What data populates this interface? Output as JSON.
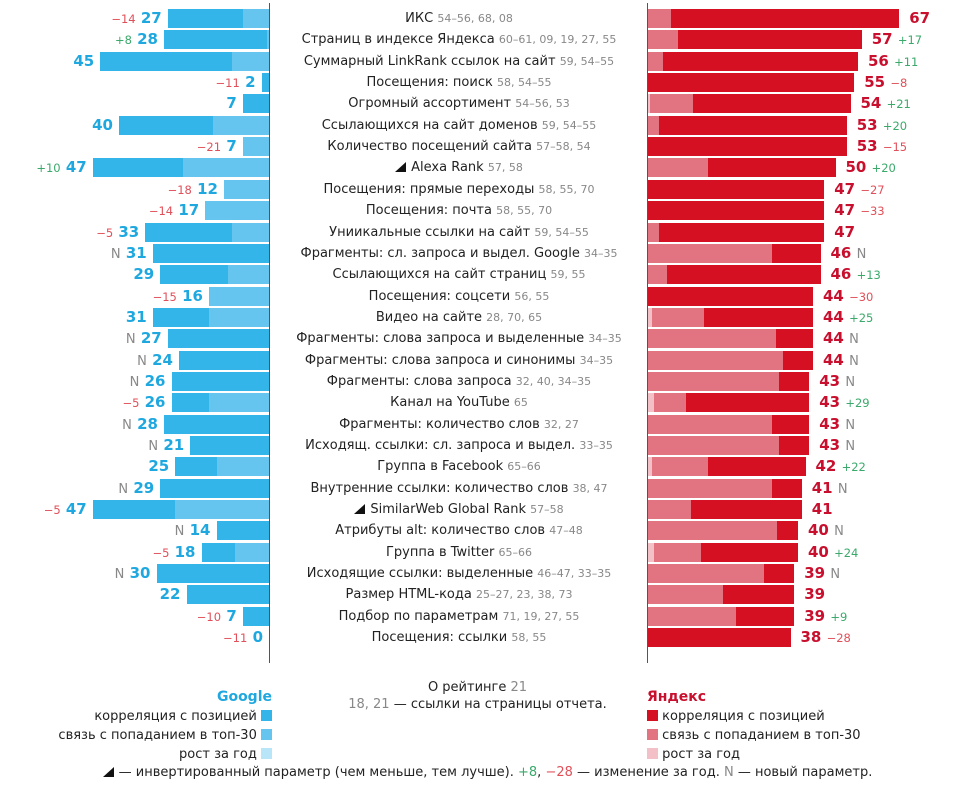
{
  "chart_data": {
    "type": "bar",
    "orientation": "horizontal-diverging",
    "title": "",
    "series": [
      {
        "name": "Google",
        "color_position": "#33b5ea",
        "color_top30": "#66c5ef",
        "color_growth": "#b9e5f8"
      },
      {
        "name": "Яндекс",
        "color_position": "#d41022",
        "color_top30": "#e27482",
        "color_growth": "#f2c0c6"
      }
    ],
    "rows": [
      {
        "label": "ИКС",
        "refs": "54–56, 68, 08",
        "inverted": false,
        "google": {
          "value": 27,
          "position": 20,
          "top30": 7,
          "growth": 0,
          "change": "−14",
          "change_type": "neg"
        },
        "yandex": {
          "value": 67,
          "position": 61,
          "top30": 6,
          "growth": 0,
          "change": "",
          "change_type": ""
        }
      },
      {
        "label": "Страниц в индексе Яндекса",
        "refs": "60–61, 09, 19, 27, 55",
        "inverted": false,
        "google": {
          "value": 28,
          "position": 27.5,
          "top30": 0.5,
          "growth": 0,
          "change": "+8",
          "change_type": "pos"
        },
        "yandex": {
          "value": 57,
          "position": 49,
          "top30": 8,
          "growth": 0,
          "change": "+17",
          "change_type": "pos"
        }
      },
      {
        "label": "Суммарный LinkRank ссылок на сайт",
        "refs": "59, 54–55",
        "inverted": false,
        "google": {
          "value": 45,
          "position": 35,
          "top30": 10,
          "growth": 0,
          "change": "",
          "change_type": ""
        },
        "yandex": {
          "value": 56,
          "position": 52,
          "top30": 4,
          "growth": 0,
          "change": "+11",
          "change_type": "pos"
        }
      },
      {
        "label": "Посещения: поиск",
        "refs": "58, 54–55",
        "inverted": false,
        "google": {
          "value": 2,
          "position": 2,
          "top30": 0,
          "growth": 0,
          "change": "−11",
          "change_type": "neg"
        },
        "yandex": {
          "value": 55,
          "position": 55,
          "top30": 0,
          "growth": 0,
          "change": "−8",
          "change_type": "neg"
        }
      },
      {
        "label": "Огромный ассортимент",
        "refs": "54–56, 53",
        "inverted": false,
        "google": {
          "value": 7,
          "position": 7,
          "top30": 0,
          "growth": 0,
          "change": "",
          "change_type": ""
        },
        "yandex": {
          "value": 54,
          "position": 42,
          "top30": 11.5,
          "growth": 0.5,
          "change": "+21",
          "change_type": "pos"
        }
      },
      {
        "label": "Ссылающихся на сайт доменов",
        "refs": "59, 54–55",
        "inverted": false,
        "google": {
          "value": 40,
          "position": 25,
          "top30": 15,
          "growth": 0,
          "change": "",
          "change_type": ""
        },
        "yandex": {
          "value": 53,
          "position": 50,
          "top30": 3,
          "growth": 0,
          "change": "+20",
          "change_type": "pos"
        }
      },
      {
        "label": "Количество посещений сайта",
        "refs": "57–58, 54",
        "inverted": false,
        "google": {
          "value": 7,
          "position": 0,
          "top30": 7,
          "growth": 0,
          "change": "−21",
          "change_type": "neg"
        },
        "yandex": {
          "value": 53,
          "position": 53,
          "top30": 0,
          "growth": 0,
          "change": "−15",
          "change_type": "neg"
        }
      },
      {
        "label": "Alexa Rank",
        "refs": "57, 58",
        "inverted": true,
        "google": {
          "value": 47,
          "position": 24,
          "top30": 23,
          "growth": 0,
          "change": "+10",
          "change_type": "pos"
        },
        "yandex": {
          "value": 50,
          "position": 34,
          "top30": 16,
          "growth": 0,
          "change": "+20",
          "change_type": "pos"
        }
      },
      {
        "label": "Посещения: прямые переходы",
        "refs": "58, 55, 70",
        "inverted": false,
        "google": {
          "value": 12,
          "position": 0,
          "top30": 12,
          "growth": 0,
          "change": "−18",
          "change_type": "neg"
        },
        "yandex": {
          "value": 47,
          "position": 47,
          "top30": 0,
          "growth": 0,
          "change": "−27",
          "change_type": "neg"
        }
      },
      {
        "label": "Посещения: почта",
        "refs": "58, 55, 70",
        "inverted": false,
        "google": {
          "value": 17,
          "position": 0,
          "top30": 17,
          "growth": 0,
          "change": "−14",
          "change_type": "neg"
        },
        "yandex": {
          "value": 47,
          "position": 47,
          "top30": 0,
          "growth": 0,
          "change": "−33",
          "change_type": "neg"
        }
      },
      {
        "label": "Униикальные ссылки на сайт",
        "refs": "59, 54–55",
        "inverted": false,
        "google": {
          "value": 33,
          "position": 23,
          "top30": 10,
          "growth": 0,
          "change": "−5",
          "change_type": "neg"
        },
        "yandex": {
          "value": 47,
          "position": 44,
          "top30": 3,
          "growth": 0,
          "change": "",
          "change_type": ""
        }
      },
      {
        "label": "Фрагменты: сл. запроса и выдел. Google",
        "refs": "34–35",
        "inverted": false,
        "google": {
          "value": 31,
          "position": 31,
          "top30": 0,
          "growth": 0,
          "change": "N",
          "change_type": "new"
        },
        "yandex": {
          "value": 46,
          "position": 13,
          "top30": 33,
          "growth": 0,
          "change": "N",
          "change_type": "new"
        }
      },
      {
        "label": "Ссылающихся на сайт страниц",
        "refs": "59, 55",
        "inverted": false,
        "google": {
          "value": 29,
          "position": 18,
          "top30": 11,
          "growth": 0,
          "change": "",
          "change_type": ""
        },
        "yandex": {
          "value": 46,
          "position": 41,
          "top30": 5,
          "growth": 0,
          "change": "+13",
          "change_type": "pos"
        }
      },
      {
        "label": "Посещения: соцсети",
        "refs": "56, 55",
        "inverted": false,
        "google": {
          "value": 16,
          "position": 0,
          "top30": 16,
          "growth": 0,
          "change": "−15",
          "change_type": "neg"
        },
        "yandex": {
          "value": 44,
          "position": 44,
          "top30": 0,
          "growth": 0,
          "change": "−30",
          "change_type": "neg"
        }
      },
      {
        "label": "Видео на сайте",
        "refs": "28, 70, 65",
        "inverted": false,
        "google": {
          "value": 31,
          "position": 15,
          "top30": 16,
          "growth": 0,
          "change": "",
          "change_type": ""
        },
        "yandex": {
          "value": 44,
          "position": 29,
          "top30": 14,
          "growth": 1,
          "change": "+25",
          "change_type": "pos"
        }
      },
      {
        "label": "Фрагменты: слова запроса и выделенные",
        "refs": "34–35",
        "inverted": false,
        "google": {
          "value": 27,
          "position": 27,
          "top30": 0,
          "growth": 0,
          "change": "N",
          "change_type": "new"
        },
        "yandex": {
          "value": 44,
          "position": 10,
          "top30": 34,
          "growth": 0,
          "change": "N",
          "change_type": "new"
        }
      },
      {
        "label": "Фрагменты: слова запроса и синонимы",
        "refs": "34–35",
        "inverted": false,
        "google": {
          "value": 24,
          "position": 24,
          "top30": 0,
          "growth": 0,
          "change": "N",
          "change_type": "new"
        },
        "yandex": {
          "value": 44,
          "position": 8,
          "top30": 36,
          "growth": 0,
          "change": "N",
          "change_type": "new"
        }
      },
      {
        "label": "Фрагменты: слова запроса",
        "refs": "32, 40, 34–35",
        "inverted": false,
        "google": {
          "value": 26,
          "position": 26,
          "top30": 0,
          "growth": 0,
          "change": "N",
          "change_type": "new"
        },
        "yandex": {
          "value": 43,
          "position": 8,
          "top30": 35,
          "growth": 0,
          "change": "N",
          "change_type": "new"
        }
      },
      {
        "label": "Канал на YouTube",
        "refs": "65",
        "inverted": false,
        "google": {
          "value": 26,
          "position": 10,
          "top30": 16,
          "growth": 0,
          "change": "−5",
          "change_type": "neg"
        },
        "yandex": {
          "value": 43,
          "position": 33,
          "top30": 8.5,
          "growth": 1.5,
          "change": "+29",
          "change_type": "pos"
        }
      },
      {
        "label": "Фрагменты: количество слов",
        "refs": "32, 27",
        "inverted": false,
        "google": {
          "value": 28,
          "position": 28,
          "top30": 0,
          "growth": 0,
          "change": "N",
          "change_type": "new"
        },
        "yandex": {
          "value": 43,
          "position": 10,
          "top30": 33,
          "growth": 0,
          "change": "N",
          "change_type": "new"
        }
      },
      {
        "label": "Исходящ. ссылки: сл. запроса и выдел.",
        "refs": "33–35",
        "inverted": false,
        "google": {
          "value": 21,
          "position": 21,
          "top30": 0,
          "growth": 0,
          "change": "N",
          "change_type": "new"
        },
        "yandex": {
          "value": 43,
          "position": 8,
          "top30": 35,
          "growth": 0,
          "change": "N",
          "change_type": "new"
        }
      },
      {
        "label": "Группа в Facebook",
        "refs": "65–66",
        "inverted": false,
        "google": {
          "value": 25,
          "position": 11,
          "top30": 14,
          "growth": 0,
          "change": "",
          "change_type": ""
        },
        "yandex": {
          "value": 42,
          "position": 26,
          "top30": 15,
          "growth": 1,
          "change": "+22",
          "change_type": "pos"
        }
      },
      {
        "label": "Внутренние ссылки: количество слов",
        "refs": "38, 47",
        "inverted": false,
        "google": {
          "value": 29,
          "position": 29,
          "top30": 0,
          "growth": 0,
          "change": "N",
          "change_type": "new"
        },
        "yandex": {
          "value": 41,
          "position": 8,
          "top30": 33,
          "growth": 0,
          "change": "N",
          "change_type": "new"
        }
      },
      {
        "label": "SimilarWeb Global Rank",
        "refs": "57–58",
        "inverted": true,
        "google": {
          "value": 47,
          "position": 22,
          "top30": 25,
          "growth": 0,
          "change": "−5",
          "change_type": "neg"
        },
        "yandex": {
          "value": 41,
          "position": 29.5,
          "top30": 11.5,
          "growth": 0,
          "change": "",
          "change_type": ""
        }
      },
      {
        "label": "Атрибуты alt: количество слов",
        "refs": "47–48",
        "inverted": false,
        "google": {
          "value": 14,
          "position": 14,
          "top30": 0,
          "growth": 0,
          "change": "N",
          "change_type": "new"
        },
        "yandex": {
          "value": 40,
          "position": 5.5,
          "top30": 34.5,
          "growth": 0,
          "change": "N",
          "change_type": "new"
        }
      },
      {
        "label": "Группа в Twitter",
        "refs": "65–66",
        "inverted": false,
        "google": {
          "value": 18,
          "position": 9,
          "top30": 9,
          "growth": 0,
          "change": "−5",
          "change_type": "neg"
        },
        "yandex": {
          "value": 40,
          "position": 26,
          "top30": 12.5,
          "growth": 1.5,
          "change": "+24",
          "change_type": "pos"
        }
      },
      {
        "label": "Исходящие ссылки: выделенные",
        "refs": "46–47, 33–35",
        "inverted": false,
        "google": {
          "value": 30,
          "position": 30,
          "top30": 0,
          "growth": 0,
          "change": "N",
          "change_type": "new"
        },
        "yandex": {
          "value": 39,
          "position": 8,
          "top30": 31,
          "growth": 0,
          "change": "N",
          "change_type": "new"
        }
      },
      {
        "label": "Размер HTML-кода",
        "refs": "25–27, 23, 38, 73",
        "inverted": false,
        "google": {
          "value": 22,
          "position": 22,
          "top30": 0,
          "growth": 0,
          "change": "",
          "change_type": ""
        },
        "yandex": {
          "value": 39,
          "position": 19,
          "top30": 20,
          "growth": 0,
          "change": "",
          "change_type": ""
        }
      },
      {
        "label": "Подбор по параметрам",
        "refs": "71, 19, 27, 55",
        "inverted": false,
        "google": {
          "value": 7,
          "position": 7,
          "top30": 0,
          "growth": 0,
          "change": "−10",
          "change_type": "neg"
        },
        "yandex": {
          "value": 39,
          "position": 15.5,
          "top30": 23.5,
          "growth": 0,
          "change": "+9",
          "change_type": "pos"
        }
      },
      {
        "label": "Посещения: ссылки",
        "refs": "58, 55",
        "inverted": false,
        "google": {
          "value": 0,
          "position": 0,
          "top30": 0,
          "growth": 0,
          "change": "−11",
          "change_type": "neg"
        },
        "yandex": {
          "value": 38,
          "position": 38,
          "top30": 0,
          "growth": 0,
          "change": "−28",
          "change_type": "neg"
        }
      }
    ]
  },
  "legend": {
    "google": {
      "title": "Google",
      "items": [
        {
          "label": "корреляция с позицией",
          "color": "#33b5ea"
        },
        {
          "label": "связь с попаданием в топ-30",
          "color": "#66c5ef"
        },
        {
          "label": "рост за год",
          "color": "#b9e5f8"
        }
      ]
    },
    "yandex": {
      "title": "Яндекс",
      "items": [
        {
          "label": "корреляция с позицией",
          "color": "#d41022"
        },
        {
          "label": "связь с попаданием в топ-30",
          "color": "#e27482"
        },
        {
          "label": "рост за год",
          "color": "#f2c0c6"
        }
      ]
    }
  },
  "center_note": {
    "title": "О рейтинге",
    "title_ref": "21",
    "refs_example": "18, 21",
    "refs_text": "— ссылки на страницы отчета."
  },
  "footer": {
    "inverted_text": "— инвертированный параметр (чем меньше, тем лучше).",
    "pos_example": "+8",
    "sep": ",",
    "neg_example": "−28",
    "change_text": "— изменение за год.",
    "new_marker": "N",
    "new_text": "— новый параметр."
  }
}
